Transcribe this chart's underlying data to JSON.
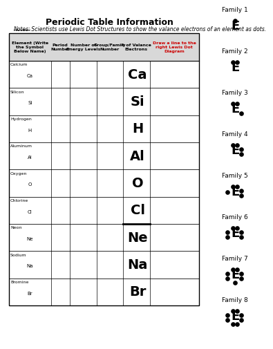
{
  "title": "Periodic Table Information",
  "note_prefix": "Notes:",
  "note_rest": " Scientists use Lewis Dot Structures to show the valance electrons of an element as dots.",
  "col_headers": [
    "Element (Write\nthe Symbol\nBelow Name)",
    "Period\nNumber",
    "Number of\nEnergy Levels",
    "Group/Family\nNumber",
    "# of Valance\nElectrons",
    "Draw a line to the\nright Lewis Dot\nDiagram"
  ],
  "elements": [
    {
      "name": "Calcium",
      "symbol": "Ca"
    },
    {
      "name": "Silicon",
      "symbol": "Si"
    },
    {
      "name": "Hydrogen",
      "symbol": "H"
    },
    {
      "name": "Aluminum",
      "symbol": "Al"
    },
    {
      "name": "Oxygen",
      "symbol": "O"
    },
    {
      "name": "Chlorine",
      "symbol": "Cl"
    },
    {
      "name": "Neon",
      "symbol": "Ne"
    },
    {
      "name": "Sodium",
      "symbol": "Na"
    },
    {
      "name": "Bromine",
      "symbol": "Br"
    }
  ],
  "family_labels": [
    "Family 1",
    "Family 2",
    "Family 3",
    "Family 4",
    "Family 5",
    "Family 6",
    "Family 7",
    "Family 8"
  ],
  "dot_configs": [
    [
      [
        0,
        8
      ]
    ],
    [
      [
        -3,
        8
      ],
      [
        3,
        8
      ]
    ],
    [
      [
        -3,
        8
      ],
      [
        3,
        8
      ],
      [
        9,
        -6
      ]
    ],
    [
      [
        -3,
        8
      ],
      [
        3,
        8
      ],
      [
        9,
        2
      ],
      [
        9,
        -5
      ]
    ],
    [
      [
        -3,
        8
      ],
      [
        3,
        8
      ],
      [
        9,
        2
      ],
      [
        9,
        -5
      ],
      [
        -11,
        0
      ]
    ],
    [
      [
        -3,
        8
      ],
      [
        3,
        8
      ],
      [
        9,
        2
      ],
      [
        9,
        -5
      ],
      [
        -11,
        2
      ],
      [
        -11,
        -5
      ]
    ],
    [
      [
        -3,
        8
      ],
      [
        3,
        8
      ],
      [
        9,
        2
      ],
      [
        9,
        -5
      ],
      [
        -11,
        2
      ],
      [
        -11,
        -5
      ],
      [
        0,
        -11
      ]
    ],
    [
      [
        -3,
        8
      ],
      [
        3,
        8
      ],
      [
        9,
        2
      ],
      [
        9,
        -5
      ],
      [
        -11,
        2
      ],
      [
        -11,
        -5
      ],
      [
        -3,
        -11
      ],
      [
        3,
        -11
      ]
    ]
  ],
  "background": "#ffffff",
  "header_bg": "#d8d8d8",
  "line_color": "#000000",
  "text_color": "#000000",
  "red_color": "#cc0000"
}
